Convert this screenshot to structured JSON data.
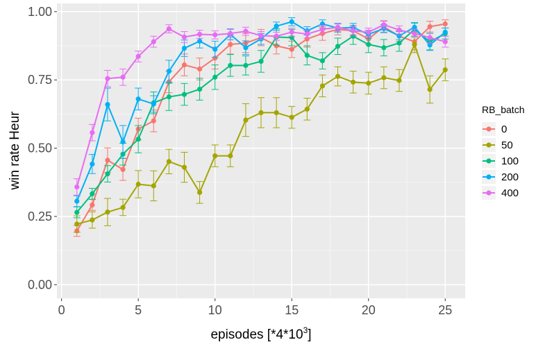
{
  "chart_data": {
    "type": "line",
    "title": "",
    "xlabel": "episodes [*4*10",
    "xlabel_superscript": "3",
    "xlabel_suffix": "]",
    "ylabel": "win rate Heur",
    "xlim": [
      -0.3,
      26.3
    ],
    "ylim": [
      -0.05,
      1.03
    ],
    "x_ticks": [
      0,
      5,
      10,
      15,
      20,
      25
    ],
    "x_tick_labels": [
      "0",
      "5",
      "10",
      "15",
      "20",
      "25"
    ],
    "y_ticks": [
      0.0,
      0.25,
      0.5,
      0.75,
      1.0
    ],
    "y_tick_labels": [
      "0.00",
      "0.25",
      "0.50",
      "0.75",
      "1.00"
    ],
    "grid": true,
    "legend_position": "right",
    "legend_title": "RB_batch",
    "x": [
      1,
      2,
      3,
      4,
      5,
      6,
      7,
      8,
      9,
      10,
      11,
      12,
      13,
      14,
      15,
      16,
      17,
      18,
      19,
      20,
      21,
      22,
      23,
      24,
      25
    ],
    "series": [
      {
        "name": "0",
        "color": "#F8766D",
        "values": [
          0.197,
          0.292,
          0.456,
          0.422,
          0.57,
          0.6,
          0.743,
          0.805,
          0.79,
          0.83,
          0.88,
          0.885,
          0.905,
          0.875,
          0.862,
          0.9,
          0.92,
          0.935,
          0.93,
          0.9,
          0.945,
          0.91,
          0.89,
          0.945,
          0.955
        ],
        "errors": [
          0.02,
          0.02,
          0.045,
          0.04,
          0.04,
          0.04,
          0.04,
          0.04,
          0.04,
          0.04,
          0.035,
          0.035,
          0.03,
          0.03,
          0.03,
          0.03,
          0.025,
          0.02,
          0.02,
          0.02,
          0.02,
          0.02,
          0.03,
          0.02,
          0.015
        ]
      },
      {
        "name": "50",
        "color": "#A3A500",
        "values": [
          0.222,
          0.237,
          0.266,
          0.283,
          0.368,
          0.362,
          0.451,
          0.43,
          0.338,
          0.472,
          0.472,
          0.603,
          0.63,
          0.63,
          0.613,
          0.643,
          0.728,
          0.763,
          0.742,
          0.738,
          0.758,
          0.748,
          0.88,
          0.715,
          0.787
        ],
        "errors": [
          0.03,
          0.03,
          0.05,
          0.03,
          0.05,
          0.055,
          0.045,
          0.055,
          0.04,
          0.04,
          0.04,
          0.06,
          0.055,
          0.055,
          0.04,
          0.04,
          0.04,
          0.035,
          0.04,
          0.04,
          0.04,
          0.04,
          0.03,
          0.05,
          0.04
        ]
      },
      {
        "name": "100",
        "color": "#00BF7D",
        "values": [
          0.265,
          0.333,
          0.406,
          0.478,
          0.533,
          0.666,
          0.688,
          0.697,
          0.716,
          0.76,
          0.803,
          0.803,
          0.818,
          0.907,
          0.905,
          0.84,
          0.82,
          0.873,
          0.91,
          0.88,
          0.868,
          0.885,
          0.935,
          0.89,
          0.92
        ],
        "errors": [
          0.02,
          0.02,
          0.03,
          0.04,
          0.05,
          0.04,
          0.05,
          0.04,
          0.04,
          0.045,
          0.04,
          0.035,
          0.04,
          0.03,
          0.03,
          0.035,
          0.03,
          0.03,
          0.03,
          0.03,
          0.03,
          0.03,
          0.025,
          0.03,
          0.02
        ]
      },
      {
        "name": "200",
        "color": "#00B0F6",
        "values": [
          0.306,
          0.442,
          0.66,
          0.523,
          0.68,
          0.662,
          0.782,
          0.866,
          0.892,
          0.862,
          0.917,
          0.868,
          0.9,
          0.947,
          0.963,
          0.93,
          0.955,
          0.94,
          0.942,
          0.917,
          0.938,
          0.912,
          0.943,
          0.878,
          0.925
        ],
        "errors": [
          0.02,
          0.035,
          0.06,
          0.06,
          0.04,
          0.03,
          0.04,
          0.03,
          0.025,
          0.03,
          0.02,
          0.025,
          0.02,
          0.015,
          0.015,
          0.015,
          0.015,
          0.015,
          0.015,
          0.015,
          0.015,
          0.015,
          0.015,
          0.02,
          0.015
        ]
      },
      {
        "name": "400",
        "color": "#E76BF3",
        "values": [
          0.358,
          0.557,
          0.755,
          0.76,
          0.836,
          0.89,
          0.937,
          0.907,
          0.917,
          0.915,
          0.92,
          0.928,
          0.912,
          0.91,
          0.925,
          0.918,
          0.935,
          0.943,
          0.93,
          0.925,
          0.952,
          0.933,
          0.92,
          0.905,
          0.89
        ],
        "errors": [
          0.03,
          0.03,
          0.03,
          0.03,
          0.02,
          0.02,
          0.015,
          0.02,
          0.015,
          0.015,
          0.015,
          0.015,
          0.015,
          0.015,
          0.015,
          0.015,
          0.015,
          0.015,
          0.015,
          0.015,
          0.015,
          0.015,
          0.015,
          0.02,
          0.02
        ]
      }
    ]
  }
}
